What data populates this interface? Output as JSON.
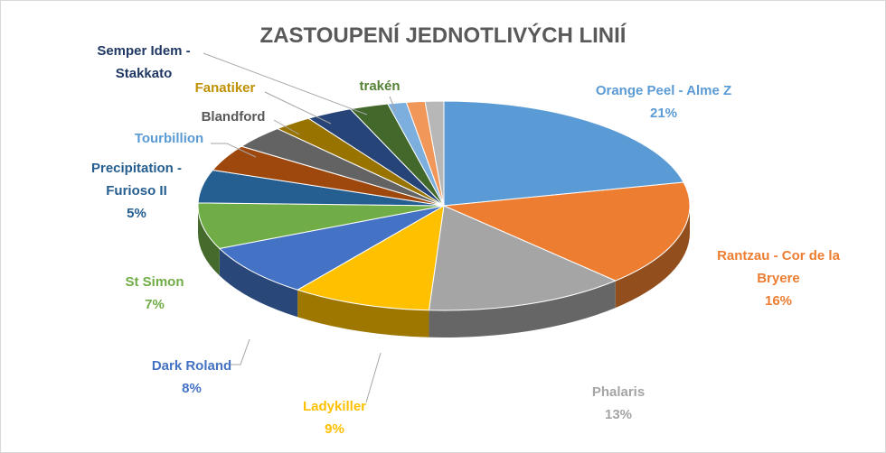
{
  "chart_data": {
    "type": "pie",
    "variant": "3d",
    "title": "ZASTOUPENÍ JEDNOTLIVÝCH LINIÍ",
    "legend": "none",
    "slices": [
      {
        "name": "Orange Peel - Alme Z",
        "value": 21,
        "display": "21%",
        "color": "#5b9bd5",
        "lines": [
          "Orange Peel - Alme Z",
          "21%"
        ]
      },
      {
        "name": "Rantzau - Cor de la Bryere",
        "value": 16,
        "display": "16%",
        "color": "#ed7d31",
        "lines": [
          "Rantzau - Cor de la",
          "Bryere",
          "16%"
        ]
      },
      {
        "name": "Phalaris",
        "value": 13,
        "display": "13%",
        "color": "#a5a5a5",
        "lines": [
          "Phalaris",
          "13%"
        ]
      },
      {
        "name": "Ladykiller",
        "value": 9,
        "display": "9%",
        "color": "#ffc000",
        "lines": [
          "Ladykiller",
          "9%"
        ]
      },
      {
        "name": "Dark Roland",
        "value": 8,
        "display": "8%",
        "color": "#4472c4",
        "lines": [
          "Dark Roland",
          "8%"
        ]
      },
      {
        "name": "St Simon",
        "value": 7,
        "display": "7%",
        "color": "#70ad47",
        "lines": [
          "St Simon",
          "7%"
        ]
      },
      {
        "name": "Precipitation - Furioso II",
        "value": 5,
        "display": "5%",
        "color": "#255e91",
        "lines": [
          "Precipitation -",
          "Furioso II",
          "5%"
        ]
      },
      {
        "name": "Tourbillion",
        "value": 4,
        "color": "#9e480e",
        "lines": [
          "Tourbillion"
        ]
      },
      {
        "name": "Blandford",
        "value": 3.5,
        "color": "#636363",
        "lines": [
          "Blandford"
        ]
      },
      {
        "name": "Fanatiker",
        "value": 2.5,
        "color": "#997300",
        "lines": [
          "Fanatiker"
        ]
      },
      {
        "name": "Semper Idem - Stakkato",
        "value": 3,
        "color": "#264478",
        "lines": [
          "Semper Idem -",
          "Stakkato"
        ]
      },
      {
        "name": "trakén",
        "value": 2.5,
        "color": "#43682b",
        "lines": [
          "trakén"
        ]
      },
      {
        "name": "",
        "value": 1.2,
        "color": "#7cafdd",
        "lines": []
      },
      {
        "name": "",
        "value": 1.2,
        "color": "#f1975a",
        "lines": []
      },
      {
        "name": "",
        "value": 1.2,
        "color": "#b7b7b7",
        "lines": []
      }
    ],
    "label_colors": {
      "Orange Peel - Alme Z": "#5b9bd5",
      "Rantzau - Cor de la Bryere": "#ed7d31",
      "Phalaris": "#a5a5a5",
      "Ladykiller": "#ffc000",
      "Dark Roland": "#4472c4",
      "St Simon": "#70ad47",
      "Precipitation - Furioso II": "#255e91",
      "Tourbillion": "#5b9bd5",
      "Blandford": "#595959",
      "Fanatiker": "#bf9000",
      "Semper Idem - Stakkato": "#203864",
      "trakén": "#548235"
    }
  }
}
